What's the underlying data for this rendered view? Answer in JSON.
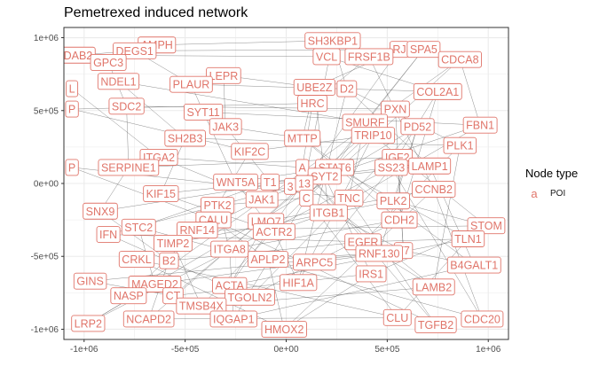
{
  "chart_data": {
    "type": "scatter",
    "title": "Pemetrexed induced network",
    "xlabel": "",
    "ylabel": "",
    "xlim": [
      -1100000,
      1100000
    ],
    "ylim": [
      -1070000,
      1070000
    ],
    "xticks": [
      -1000000,
      -500000,
      0,
      500000,
      1000000
    ],
    "xtick_labels": [
      "-1e+06",
      "-5e+05",
      "0e+00",
      "5e+05",
      "1e+06"
    ],
    "yticks": [
      1000000,
      500000,
      0,
      -500000,
      -1000000
    ],
    "ytick_labels": [
      "1e+06",
      "5e+05",
      "0e+00",
      "-5e+05",
      "-1e+06"
    ],
    "grid": true,
    "legend": {
      "title": "Node type",
      "key": "a",
      "label": "POI",
      "position": "right"
    },
    "colors": {
      "label": "#e0756a",
      "edge": "#555555",
      "grid": "#ebebeb",
      "panel_border": "#333333"
    },
    "nodes": [
      {
        "label": "AMPH",
        "x": -640000,
        "y": 950000
      },
      {
        "label": "DAB2",
        "x": -1030000,
        "y": 880000
      },
      {
        "label": "DEGS1",
        "x": -750000,
        "y": 910000
      },
      {
        "label": "GPC3",
        "x": -880000,
        "y": 830000
      },
      {
        "label": "LEPR",
        "x": -310000,
        "y": 740000
      },
      {
        "label": "NDEL1",
        "x": -830000,
        "y": 700000
      },
      {
        "label": "PLAUR",
        "x": -470000,
        "y": 680000
      },
      {
        "label": "L",
        "x": -1060000,
        "y": 650000
      },
      {
        "label": "SDC2",
        "x": -790000,
        "y": 530000
      },
      {
        "label": "P",
        "x": -1060000,
        "y": 510000
      },
      {
        "label": "SYT11",
        "x": -410000,
        "y": 490000
      },
      {
        "label": "JAK3",
        "x": -300000,
        "y": 390000
      },
      {
        "label": "SH2B3",
        "x": -500000,
        "y": 310000
      },
      {
        "label": "ITGA2",
        "x": -630000,
        "y": 180000
      },
      {
        "label": "KIF2C",
        "x": -180000,
        "y": 220000
      },
      {
        "label": "SERPINE1",
        "x": -780000,
        "y": 110000
      },
      {
        "label": "P",
        "x": -1060000,
        "y": 110000
      },
      {
        "label": "WNT5A",
        "x": -250000,
        "y": 10000
      },
      {
        "label": "T1",
        "x": -80000,
        "y": 10000
      },
      {
        "label": "3",
        "x": 20000,
        "y": -20000
      },
      {
        "label": "KIF15",
        "x": -620000,
        "y": -70000
      },
      {
        "label": "JAK1",
        "x": -120000,
        "y": -110000
      },
      {
        "label": "PTK2",
        "x": -340000,
        "y": -150000
      },
      {
        "label": "SNX9",
        "x": -920000,
        "y": -190000
      },
      {
        "label": "CALU",
        "x": -360000,
        "y": -250000
      },
      {
        "label": "LMO7",
        "x": -100000,
        "y": -260000
      },
      {
        "label": "STC2",
        "x": -730000,
        "y": -300000
      },
      {
        "label": "RNF14",
        "x": -440000,
        "y": -320000
      },
      {
        "label": "IFN",
        "x": -880000,
        "y": -350000
      },
      {
        "label": "ACTR2",
        "x": -60000,
        "y": -330000
      },
      {
        "label": "TIMP2",
        "x": -560000,
        "y": -410000
      },
      {
        "label": "ITGA8",
        "x": -280000,
        "y": -450000
      },
      {
        "label": "CRKL",
        "x": -740000,
        "y": -520000
      },
      {
        "label": "B2",
        "x": -580000,
        "y": -530000
      },
      {
        "label": "APLP2",
        "x": -90000,
        "y": -520000
      },
      {
        "label": "GINS",
        "x": -970000,
        "y": -670000
      },
      {
        "label": "MAGED2",
        "x": -650000,
        "y": -690000
      },
      {
        "label": "ACTA",
        "x": -280000,
        "y": -700000
      },
      {
        "label": "NASP",
        "x": -780000,
        "y": -770000
      },
      {
        "label": "CT",
        "x": -560000,
        "y": -770000
      },
      {
        "label": "TGOLN2",
        "x": -180000,
        "y": -780000
      },
      {
        "label": "HIF1A",
        "x": 60000,
        "y": -680000
      },
      {
        "label": "TMSB4X",
        "x": -420000,
        "y": -840000
      },
      {
        "label": "LRP2",
        "x": -980000,
        "y": -960000
      },
      {
        "label": "NCAPD2",
        "x": -680000,
        "y": -930000
      },
      {
        "label": "IQGAP1",
        "x": -260000,
        "y": -930000
      },
      {
        "label": "HMOX2",
        "x": -10000,
        "y": -1000000
      },
      {
        "label": "SH3KBP1",
        "x": 230000,
        "y": 980000
      },
      {
        "label": "RJ",
        "x": 560000,
        "y": 920000
      },
      {
        "label": "SPA5",
        "x": 680000,
        "y": 920000
      },
      {
        "label": "VCL",
        "x": 200000,
        "y": 870000
      },
      {
        "label": "FRSF1B",
        "x": 410000,
        "y": 870000
      },
      {
        "label": "CDCA8",
        "x": 860000,
        "y": 850000
      },
      {
        "label": "UBE2Z",
        "x": 140000,
        "y": 660000
      },
      {
        "label": "D2",
        "x": 300000,
        "y": 650000
      },
      {
        "label": "COL2A1",
        "x": 750000,
        "y": 630000
      },
      {
        "label": "HRC",
        "x": 130000,
        "y": 550000
      },
      {
        "label": "PXN",
        "x": 540000,
        "y": 510000
      },
      {
        "label": "SMURF",
        "x": 390000,
        "y": 420000
      },
      {
        "label": "PD52",
        "x": 650000,
        "y": 390000
      },
      {
        "label": "FBN1",
        "x": 960000,
        "y": 400000
      },
      {
        "label": "MTTP",
        "x": 80000,
        "y": 310000
      },
      {
        "label": "TRIP10",
        "x": 430000,
        "y": 330000
      },
      {
        "label": "PLK1",
        "x": 860000,
        "y": 260000
      },
      {
        "label": "IGF2",
        "x": 550000,
        "y": 180000
      },
      {
        "label": "A",
        "x": 80000,
        "y": 110000
      },
      {
        "label": "STAT6",
        "x": 240000,
        "y": 110000
      },
      {
        "label": "SS23",
        "x": 520000,
        "y": 110000
      },
      {
        "label": "LAMP1",
        "x": 710000,
        "y": 120000
      },
      {
        "label": "SYT2",
        "x": 190000,
        "y": 50000
      },
      {
        "label": "13",
        "x": 90000,
        "y": 0
      },
      {
        "label": "C",
        "x": 100000,
        "y": -100000
      },
      {
        "label": "TNC",
        "x": 310000,
        "y": -100000
      },
      {
        "label": "CCNB2",
        "x": 730000,
        "y": -40000
      },
      {
        "label": "PLK2",
        "x": 530000,
        "y": -120000
      },
      {
        "label": "ITGB1",
        "x": 210000,
        "y": -200000
      },
      {
        "label": "CDH2",
        "x": 560000,
        "y": -250000
      },
      {
        "label": "STOM",
        "x": 990000,
        "y": -290000
      },
      {
        "label": "EGFR",
        "x": 380000,
        "y": -400000
      },
      {
        "label": "T7",
        "x": 580000,
        "y": -460000
      },
      {
        "label": "RNF130",
        "x": 460000,
        "y": -480000
      },
      {
        "label": "TLN1",
        "x": 900000,
        "y": -380000
      },
      {
        "label": "ARPC5",
        "x": 140000,
        "y": -540000
      },
      {
        "label": "B4GALT1",
        "x": 930000,
        "y": -560000
      },
      {
        "label": "IRS1",
        "x": 420000,
        "y": -620000
      },
      {
        "label": "LAMB2",
        "x": 730000,
        "y": -710000
      },
      {
        "label": "CLU",
        "x": 550000,
        "y": -920000
      },
      {
        "label": "TGFB2",
        "x": 740000,
        "y": -970000
      },
      {
        "label": "CDC20",
        "x": 970000,
        "y": -930000
      }
    ],
    "edges": [
      [
        0,
        3
      ],
      [
        1,
        2
      ],
      [
        2,
        6
      ],
      [
        3,
        8
      ],
      [
        4,
        11
      ],
      [
        5,
        12
      ],
      [
        6,
        10
      ],
      [
        7,
        13
      ],
      [
        8,
        15
      ],
      [
        9,
        14
      ],
      [
        10,
        17
      ],
      [
        11,
        18
      ],
      [
        12,
        20
      ],
      [
        13,
        21
      ],
      [
        14,
        22
      ],
      [
        15,
        23
      ],
      [
        16,
        24
      ],
      [
        17,
        25
      ],
      [
        18,
        26
      ],
      [
        19,
        28
      ],
      [
        20,
        29
      ],
      [
        21,
        30
      ],
      [
        22,
        31
      ],
      [
        23,
        33
      ],
      [
        24,
        34
      ],
      [
        25,
        37
      ],
      [
        26,
        36
      ],
      [
        27,
        38
      ],
      [
        28,
        40
      ],
      [
        29,
        41
      ],
      [
        30,
        42
      ],
      [
        31,
        45
      ],
      [
        32,
        46
      ],
      [
        33,
        44
      ],
      [
        34,
        46
      ],
      [
        35,
        39
      ],
      [
        36,
        43
      ],
      [
        37,
        48
      ],
      [
        38,
        52
      ],
      [
        39,
        57
      ],
      [
        40,
        59
      ],
      [
        41,
        62
      ],
      [
        42,
        66
      ],
      [
        43,
        67
      ],
      [
        44,
        70
      ],
      [
        45,
        71
      ],
      [
        46,
        73
      ],
      [
        47,
        54
      ],
      [
        48,
        53
      ],
      [
        49,
        58
      ],
      [
        50,
        55
      ],
      [
        51,
        56
      ],
      [
        52,
        60
      ],
      [
        53,
        61
      ],
      [
        54,
        63
      ],
      [
        55,
        64
      ],
      [
        56,
        65
      ],
      [
        57,
        69
      ],
      [
        58,
        72
      ],
      [
        59,
        74
      ],
      [
        60,
        75
      ],
      [
        61,
        76
      ],
      [
        62,
        77
      ],
      [
        63,
        78
      ],
      [
        64,
        79
      ],
      [
        65,
        80
      ],
      [
        66,
        81
      ],
      [
        67,
        82
      ],
      [
        68,
        83
      ],
      [
        69,
        84
      ],
      [
        70,
        85
      ],
      [
        71,
        86
      ],
      [
        72,
        87
      ],
      [
        73,
        88
      ],
      [
        74,
        77
      ],
      [
        75,
        79
      ],
      [
        76,
        82
      ],
      [
        77,
        84
      ],
      [
        78,
        81
      ],
      [
        79,
        83
      ],
      [
        80,
        85
      ],
      [
        81,
        86
      ],
      [
        0,
        47
      ],
      [
        1,
        50
      ],
      [
        2,
        49
      ],
      [
        4,
        53
      ],
      [
        6,
        55
      ],
      [
        10,
        60
      ],
      [
        11,
        61
      ],
      [
        14,
        62
      ],
      [
        17,
        66
      ],
      [
        18,
        67
      ],
      [
        21,
        70
      ],
      [
        22,
        71
      ],
      [
        25,
        73
      ],
      [
        29,
        75
      ],
      [
        31,
        76
      ],
      [
        34,
        80
      ],
      [
        37,
        81
      ],
      [
        40,
        82
      ],
      [
        45,
        83
      ],
      [
        46,
        84
      ],
      [
        12,
        63
      ],
      [
        15,
        64
      ],
      [
        20,
        68
      ],
      [
        23,
        69
      ],
      [
        30,
        74
      ],
      [
        33,
        78
      ],
      [
        36,
        79
      ],
      [
        42,
        85
      ],
      [
        44,
        86
      ],
      [
        5,
        58
      ],
      [
        8,
        57
      ],
      [
        9,
        56
      ],
      [
        13,
        65
      ],
      [
        16,
        72
      ],
      [
        24,
        87
      ],
      [
        26,
        88
      ],
      [
        27,
        77
      ],
      [
        28,
        78
      ],
      [
        32,
        86
      ],
      [
        35,
        80
      ],
      [
        39,
        84
      ],
      [
        41,
        54
      ],
      [
        43,
        59
      ],
      [
        47,
        70
      ],
      [
        49,
        71
      ],
      [
        51,
        73
      ],
      [
        53,
        75
      ],
      [
        55,
        76
      ],
      [
        57,
        79
      ],
      [
        59,
        80
      ],
      [
        61,
        83
      ],
      [
        63,
        85
      ],
      [
        65,
        87
      ],
      [
        67,
        88
      ],
      [
        60,
        70
      ],
      [
        52,
        71
      ],
      [
        58,
        66
      ],
      [
        54,
        68
      ]
    ]
  }
}
